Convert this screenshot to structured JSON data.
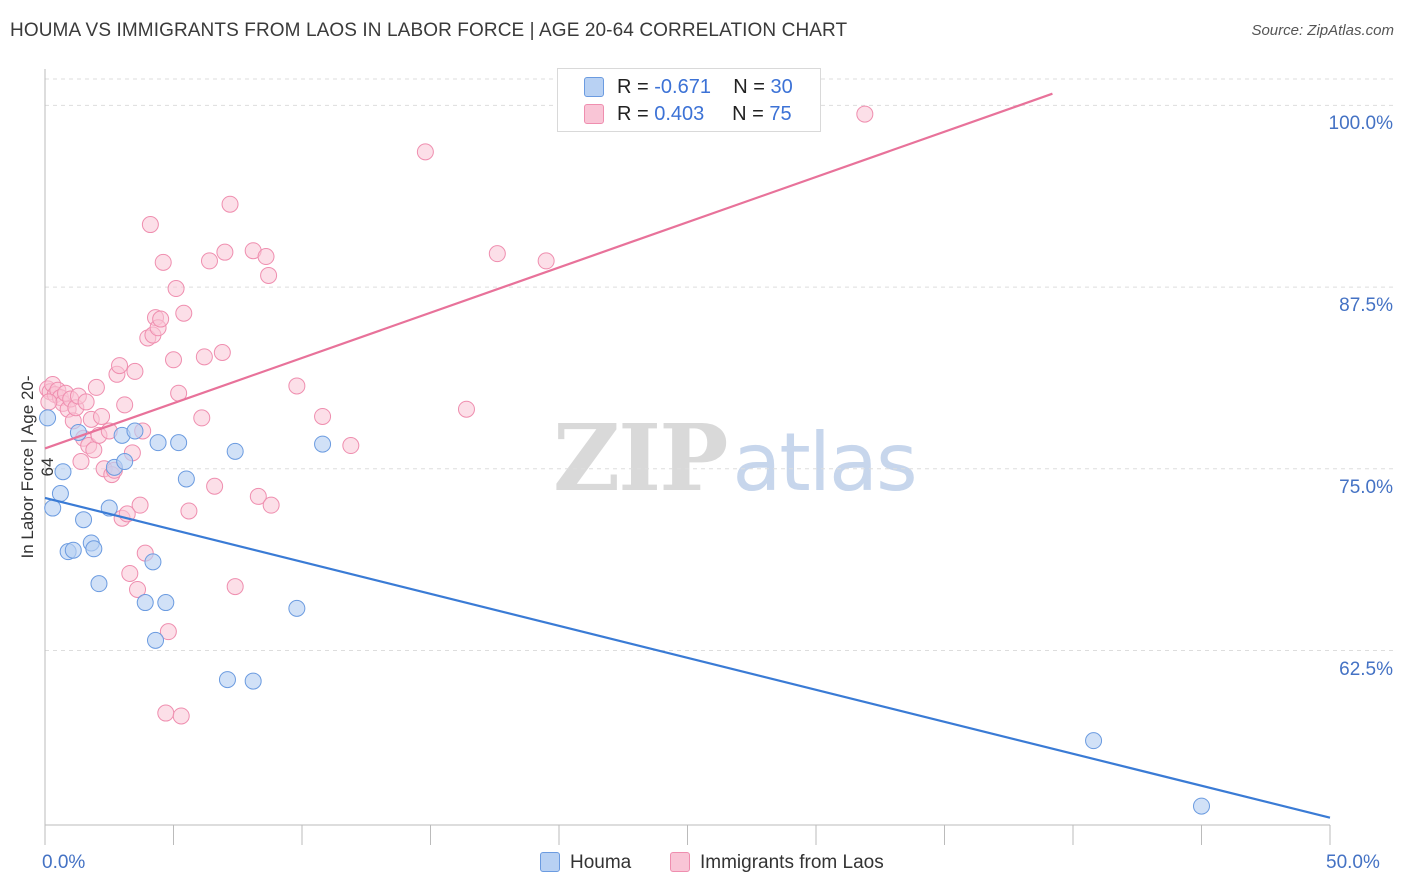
{
  "title": "HOUMA VS IMMIGRANTS FROM LAOS IN LABOR FORCE | AGE 20-64 CORRELATION CHART",
  "source": "Source: ZipAtlas.com",
  "watermark": {
    "zip": "ZIP",
    "atlas": "atlas"
  },
  "legend": {
    "r_label": "R =",
    "n_label": "N =",
    "houma_r": "-0.671",
    "houma_n": "30",
    "laos_r": "0.403",
    "laos_n": "75"
  },
  "colors": {
    "houma_fill": "#b8d1f3",
    "houma_stroke": "#6b9be0",
    "houma_line": "#3a7bd5",
    "laos_fill": "#f9c5d6",
    "laos_stroke": "#ef8eaf",
    "laos_line": "#e8729a",
    "grid": "#dddddd",
    "tick_label": "#4472c4"
  },
  "chart_data": {
    "type": "scatter",
    "title": "HOUMA VS IMMIGRANTS FROM LAOS IN LABOR FORCE | AGE 20-64 CORRELATION CHART",
    "xlabel": "",
    "ylabel": "In Labor Force | Age 20-64",
    "xlim": [
      0,
      50
    ],
    "ylim": [
      50.5,
      102.5
    ],
    "x_tick_labels": [
      "0.0%",
      "50.0%"
    ],
    "y_ticks": [
      62.5,
      75.0,
      87.5,
      100.0
    ],
    "y_tick_labels": [
      "62.5%",
      "75.0%",
      "87.5%",
      "100.0%"
    ],
    "legend_position": "top-center",
    "series": [
      {
        "name": "Houma",
        "R": -0.671,
        "N": 30,
        "trend": {
          "x": [
            0,
            50
          ],
          "y": [
            73.0,
            51.0
          ]
        },
        "points": [
          [
            0.1,
            78.5
          ],
          [
            0.3,
            72.3
          ],
          [
            0.6,
            73.3
          ],
          [
            0.7,
            74.8
          ],
          [
            0.9,
            69.3
          ],
          [
            1.1,
            69.4
          ],
          [
            1.3,
            77.5
          ],
          [
            1.5,
            71.5
          ],
          [
            1.8,
            69.9
          ],
          [
            1.9,
            69.5
          ],
          [
            2.1,
            67.1
          ],
          [
            2.5,
            72.3
          ],
          [
            2.7,
            75.1
          ],
          [
            3.0,
            77.3
          ],
          [
            3.1,
            75.5
          ],
          [
            3.5,
            77.6
          ],
          [
            3.9,
            65.8
          ],
          [
            4.2,
            68.6
          ],
          [
            4.3,
            63.2
          ],
          [
            4.4,
            76.8
          ],
          [
            4.7,
            65.8
          ],
          [
            5.2,
            76.8
          ],
          [
            5.5,
            74.3
          ],
          [
            7.1,
            60.5
          ],
          [
            7.4,
            76.2
          ],
          [
            8.1,
            60.4
          ],
          [
            9.8,
            65.4
          ],
          [
            10.8,
            76.7
          ],
          [
            40.8,
            56.3
          ],
          [
            45.0,
            51.8
          ]
        ]
      },
      {
        "name": "Immigrants from Laos",
        "R": 0.403,
        "N": 75,
        "trend": {
          "x": [
            0,
            39.2
          ],
          "y": [
            76.4,
            100.8
          ]
        },
        "points": [
          [
            0.1,
            80.5
          ],
          [
            0.2,
            80.3
          ],
          [
            0.3,
            80.8
          ],
          [
            0.4,
            80.1
          ],
          [
            0.5,
            80.4
          ],
          [
            0.6,
            79.9
          ],
          [
            0.7,
            79.5
          ],
          [
            0.8,
            80.2
          ],
          [
            0.9,
            79.1
          ],
          [
            1.0,
            79.8
          ],
          [
            1.1,
            78.3
          ],
          [
            1.2,
            79.2
          ],
          [
            1.3,
            80.0
          ],
          [
            1.4,
            75.5
          ],
          [
            1.5,
            77.1
          ],
          [
            1.6,
            79.6
          ],
          [
            1.7,
            76.6
          ],
          [
            1.8,
            78.4
          ],
          [
            1.9,
            76.3
          ],
          [
            2.0,
            80.6
          ],
          [
            2.1,
            77.3
          ],
          [
            2.2,
            78.6
          ],
          [
            2.3,
            75.0
          ],
          [
            2.5,
            77.6
          ],
          [
            2.6,
            74.6
          ],
          [
            2.7,
            74.9
          ],
          [
            2.8,
            81.5
          ],
          [
            2.9,
            82.1
          ],
          [
            3.0,
            71.6
          ],
          [
            3.1,
            79.4
          ],
          [
            3.2,
            71.9
          ],
          [
            3.3,
            67.8
          ],
          [
            3.4,
            76.1
          ],
          [
            3.5,
            81.7
          ],
          [
            3.6,
            66.7
          ],
          [
            3.7,
            72.5
          ],
          [
            3.8,
            77.6
          ],
          [
            3.9,
            69.2
          ],
          [
            4.0,
            84.0
          ],
          [
            4.1,
            91.8
          ],
          [
            4.2,
            84.2
          ],
          [
            4.3,
            85.4
          ],
          [
            4.4,
            84.7
          ],
          [
            4.5,
            85.3
          ],
          [
            4.6,
            89.2
          ],
          [
            4.7,
            58.2
          ],
          [
            4.8,
            63.8
          ],
          [
            5.0,
            82.5
          ],
          [
            5.1,
            87.4
          ],
          [
            5.2,
            80.2
          ],
          [
            5.3,
            58.0
          ],
          [
            5.4,
            85.7
          ],
          [
            5.6,
            72.1
          ],
          [
            6.1,
            78.5
          ],
          [
            6.2,
            82.7
          ],
          [
            6.4,
            89.3
          ],
          [
            6.6,
            73.8
          ],
          [
            6.9,
            83.0
          ],
          [
            7.0,
            89.9
          ],
          [
            7.2,
            93.2
          ],
          [
            7.4,
            66.9
          ],
          [
            8.1,
            90.0
          ],
          [
            8.3,
            73.1
          ],
          [
            8.6,
            89.6
          ],
          [
            8.7,
            88.3
          ],
          [
            8.8,
            72.5
          ],
          [
            9.8,
            80.7
          ],
          [
            10.8,
            78.6
          ],
          [
            11.9,
            76.6
          ],
          [
            14.8,
            96.8
          ],
          [
            16.4,
            79.1
          ],
          [
            17.6,
            89.8
          ],
          [
            19.5,
            89.3
          ],
          [
            31.9,
            99.4
          ],
          [
            0.15,
            79.6
          ]
        ]
      }
    ]
  }
}
